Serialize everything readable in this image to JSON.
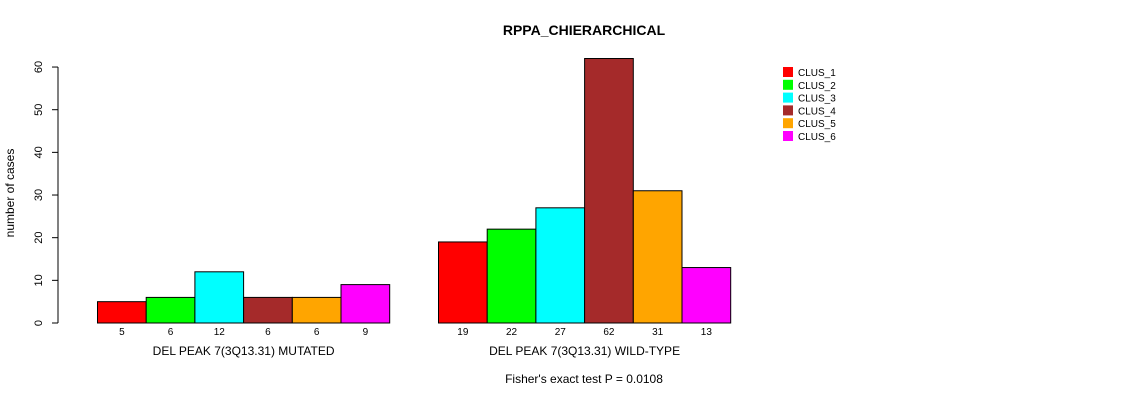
{
  "chart_data": {
    "type": "bar",
    "title": "RPPA_CHIERARCHICAL",
    "ylabel": "number of cases",
    "ylim": [
      0,
      60
    ],
    "yticks": [
      0,
      10,
      20,
      30,
      40,
      50,
      60
    ],
    "grid": false,
    "legend_position": "top-right",
    "series_names": [
      "CLUS_1",
      "CLUS_2",
      "CLUS_3",
      "CLUS_4",
      "CLUS_5",
      "CLUS_6"
    ],
    "series_colors": [
      "#ff0000",
      "#00ff00",
      "#00ffff",
      "#a52a2a",
      "#ffa500",
      "#ff00ff"
    ],
    "groups": [
      {
        "name": "DEL PEAK  7(3Q13.31) MUTATED",
        "values": [
          5,
          6,
          12,
          6,
          6,
          9
        ]
      },
      {
        "name": "DEL PEAK  7(3Q13.31) WILD-TYPE",
        "values": [
          19,
          22,
          27,
          62,
          31,
          13
        ]
      }
    ],
    "annotation": "Fisher's exact test P = 0.0108"
  }
}
